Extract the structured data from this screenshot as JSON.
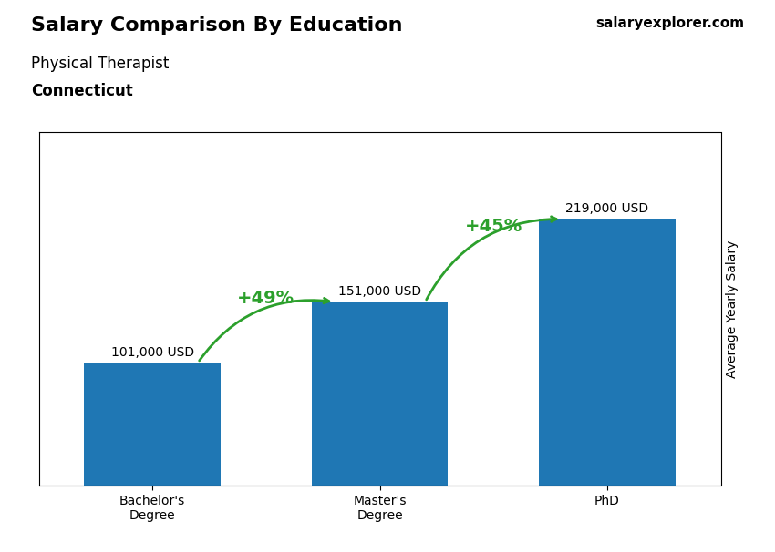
{
  "chart_data": {
    "type": "bar",
    "title": "Salary Comparison By Education",
    "subtitle": [
      "Physical Therapist",
      "Connecticut"
    ],
    "source": "salaryexplorer.com",
    "ylabel": "Average Yearly Salary",
    "categories": [
      "Bachelor's\nDegree",
      "Master's\nDegree",
      "PhD"
    ],
    "values": [
      101000,
      151000,
      219000
    ],
    "value_labels": [
      "101,000 USD",
      "151,000 USD",
      "219,000 USD"
    ],
    "data_labels": true,
    "annotations": [
      {
        "text": "+49%",
        "from": "Bachelor's\nDegree",
        "to": "Master's\nDegree"
      },
      {
        "text": "+45%",
        "from": "Master's\nDegree",
        "to": "PhD"
      }
    ],
    "ylim": [
      0,
      290000
    ],
    "yticks": [],
    "tick_labels": "x",
    "grid": false
  }
}
